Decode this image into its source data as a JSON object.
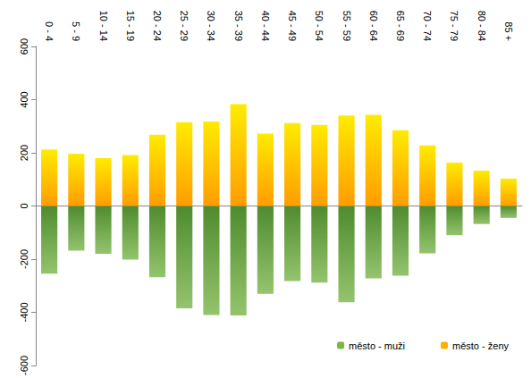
{
  "chart_data": {
    "type": "bar",
    "categories": [
      "0 - 4",
      "5 - 9",
      "10 - 14",
      "15 - 19",
      "20 - 24",
      "25 - 29",
      "30 - 34",
      "35 - 39",
      "40 - 44",
      "45 - 49",
      "50 - 54",
      "55 - 59",
      "60 - 64",
      "65 - 69",
      "70 - 74",
      "75 - 79",
      "80 - 84",
      "85 +"
    ],
    "series": [
      {
        "name": "město - muži",
        "color": "#79b548",
        "values": [
          -255,
          -168,
          -180,
          -202,
          -268,
          -385,
          -410,
          -412,
          -330,
          -282,
          -288,
          -362,
          -272,
          -262,
          -178,
          -110,
          -68,
          -45
        ]
      },
      {
        "name": "město - ženy",
        "color": "#ffb000",
        "values": [
          213,
          197,
          180,
          192,
          268,
          315,
          318,
          383,
          272,
          312,
          305,
          340,
          343,
          285,
          228,
          163,
          133,
          103
        ]
      }
    ],
    "ylim": [
      -600,
      600
    ],
    "yticks": [
      -600,
      -400,
      -200,
      0,
      200,
      400,
      600
    ],
    "grid": false,
    "legend": "lower right"
  }
}
